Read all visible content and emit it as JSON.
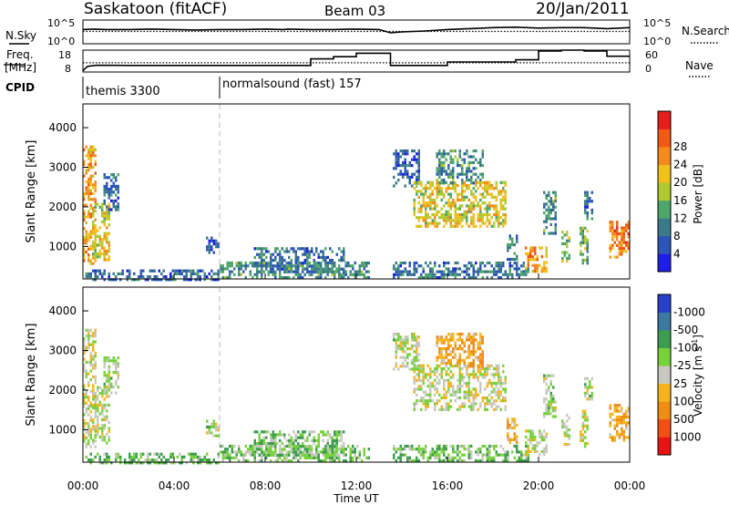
{
  "header": {
    "station": "Saskatoon (fitACF)",
    "beam": "Beam 03",
    "date": "20/Jan/2011"
  },
  "labels": {
    "nsky": "N.Sky",
    "nsearch": "N.Search",
    "freq_line1": "Freq.",
    "freq_line2": "[MHz]",
    "nave": "Nave",
    "cpid": "CPID",
    "noise_tick_top": "10^5",
    "noise_tick_bottom": "10^0",
    "noise_tick_top_right": "10^5",
    "noise_tick_bottom_right": "10^0"
  },
  "cpid_segments": [
    {
      "label": "themis 3300",
      "start_hour": 0
    },
    {
      "label": "normalsound (fast) 157",
      "start_hour": 6.0
    }
  ],
  "chart_data": [
    {
      "type": "line",
      "panel": "noise",
      "series": [
        {
          "name": "N.Sky",
          "style": "solid",
          "x": [
            0,
            0.5,
            1,
            2,
            3,
            4,
            5,
            6,
            7,
            8,
            8.8,
            9,
            10,
            11,
            12,
            13,
            13.5,
            14,
            15,
            16,
            17,
            18,
            19,
            20,
            21,
            22,
            23,
            24
          ],
          "y": [
            3.0,
            3.1,
            3.0,
            3.0,
            3.1,
            3.0,
            2.9,
            3.0,
            3.0,
            3.1,
            3.0,
            3.1,
            3.0,
            3.0,
            3.1,
            3.0,
            2.3,
            2.5,
            2.7,
            3.0,
            3.2,
            3.4,
            3.5,
            3.3,
            3.4,
            3.4,
            3.2,
            3.4
          ]
        },
        {
          "name": "N.Search",
          "style": "dotted",
          "x": [
            0,
            24
          ],
          "y": [
            2.6,
            2.6
          ]
        }
      ],
      "ylim": [
        0,
        5
      ],
      "y2lim": [
        0,
        5
      ]
    },
    {
      "type": "line",
      "panel": "frequency",
      "series": [
        {
          "name": "Freq.",
          "style": "solid",
          "x": [
            0,
            0.2,
            0.6,
            2,
            6,
            10.0,
            10.0,
            11.0,
            11.0,
            12.0,
            12.0,
            13.5,
            13.5,
            16.0,
            16.0,
            19.0,
            19.0,
            20.0,
            20.0,
            21.0,
            21.0,
            22.0,
            22.0,
            23.0,
            23.0,
            24
          ],
          "y": [
            8.6,
            10.6,
            11.1,
            11.0,
            11.0,
            11.0,
            14.0,
            14.0,
            15.0,
            15.0,
            16.6,
            16.6,
            11.0,
            11.0,
            12.6,
            12.6,
            13.6,
            13.6,
            17.6,
            17.6,
            18.0,
            18.0,
            17.6,
            17.6,
            15.2,
            15.2
          ]
        },
        {
          "name": "Nave",
          "style": "dotted",
          "x": [
            0,
            24
          ],
          "y": [
            12.2,
            12.2
          ]
        }
      ],
      "ylim": [
        8,
        18
      ],
      "yticks": [
        8,
        18
      ],
      "y2lim": [
        0,
        60
      ],
      "y2ticks": [
        0,
        60
      ]
    },
    {
      "type": "heatmap",
      "panel": "power",
      "xlabel": "",
      "ylabel": "Slant Range [km]",
      "xlim": [
        0,
        24
      ],
      "ylim": [
        180,
        4600
      ],
      "yticks": [
        1000,
        2000,
        3000,
        4000
      ],
      "colorbar": {
        "label": "Power [dB]",
        "range": [
          0,
          32
        ],
        "ticks": [
          "4",
          "8",
          "12",
          "16",
          "20",
          "24",
          "28"
        ],
        "colors": [
          "#1e1ee8",
          "#2d55b8",
          "#3c7a8a",
          "#4ea66a",
          "#b0c832",
          "#f0c01e",
          "#f58a1e",
          "#f05a14",
          "#e61e1e"
        ]
      },
      "regions": [
        {
          "t0": 0.0,
          "t1": 0.55,
          "r0": 600,
          "r1": 3550,
          "v": 22
        },
        {
          "t0": 0.4,
          "t1": 1.15,
          "r0": 700,
          "r1": 2100,
          "v": 18
        },
        {
          "t0": 0.9,
          "t1": 1.6,
          "r0": 1900,
          "r1": 2850,
          "v": 8
        },
        {
          "t0": 0.1,
          "t1": 6.0,
          "r0": 180,
          "r1": 420,
          "v": 7
        },
        {
          "t0": 6.0,
          "t1": 12.6,
          "r0": 180,
          "r1": 620,
          "v": 10
        },
        {
          "t0": 7.5,
          "t1": 11.5,
          "r0": 380,
          "r1": 980,
          "v": 8
        },
        {
          "t0": 5.4,
          "t1": 6.0,
          "r0": 850,
          "r1": 1250,
          "v": 6
        },
        {
          "t0": 13.6,
          "t1": 14.8,
          "r0": 2500,
          "r1": 3450,
          "v": 6
        },
        {
          "t0": 14.5,
          "t1": 18.6,
          "r0": 1500,
          "r1": 2650,
          "v": 18
        },
        {
          "t0": 15.5,
          "t1": 17.6,
          "r0": 2600,
          "r1": 3450,
          "v": 10
        },
        {
          "t0": 13.6,
          "t1": 19.6,
          "r0": 180,
          "r1": 620,
          "v": 8
        },
        {
          "t0": 18.6,
          "t1": 19.1,
          "r0": 650,
          "r1": 1300,
          "v": 9
        },
        {
          "t0": 19.4,
          "t1": 20.4,
          "r0": 400,
          "r1": 1000,
          "v": 22
        },
        {
          "t0": 20.2,
          "t1": 20.8,
          "r0": 1300,
          "r1": 2400,
          "v": 10
        },
        {
          "t0": 21.0,
          "t1": 21.4,
          "r0": 600,
          "r1": 1400,
          "v": 14
        },
        {
          "t0": 21.8,
          "t1": 22.2,
          "r0": 600,
          "r1": 1500,
          "v": 14
        },
        {
          "t0": 22.0,
          "t1": 22.4,
          "r0": 1700,
          "r1": 2400,
          "v": 8
        },
        {
          "t0": 23.1,
          "t1": 24.0,
          "r0": 700,
          "r1": 1650,
          "v": 24
        }
      ]
    },
    {
      "type": "heatmap",
      "panel": "velocity",
      "xlabel": "Time UT",
      "ylabel": "Slant Range [km]",
      "xlim": [
        0,
        24
      ],
      "ylim": [
        180,
        4600
      ],
      "xticks": [
        "00:00",
        "04:00",
        "08:00",
        "12:00",
        "16:00",
        "20:00",
        "00:00"
      ],
      "yticks": [
        1000,
        2000,
        3000,
        4000
      ],
      "colorbar": {
        "label": "Velocity [m s-1]",
        "range": [
          0,
          8
        ],
        "ticks": [
          "1000",
          "500",
          "100",
          "25",
          "-25",
          "-100",
          "-500",
          "-1000"
        ],
        "colors": [
          "#2840c8",
          "#3c78a0",
          "#3c9c50",
          "#78d23c",
          "#c8c8c0",
          "#f5b41e",
          "#f08c14",
          "#f05014",
          "#e61414"
        ]
      },
      "regions": [
        {
          "t0": 0.0,
          "t1": 0.55,
          "r0": 600,
          "r1": 3550,
          "v": 4.6
        },
        {
          "t0": 0.4,
          "t1": 1.15,
          "r0": 700,
          "r1": 2100,
          "v": 4.3
        },
        {
          "t0": 0.9,
          "t1": 1.6,
          "r0": 1900,
          "r1": 2850,
          "v": 4.0
        },
        {
          "t0": 0.1,
          "t1": 6.0,
          "r0": 180,
          "r1": 420,
          "v": 3.2
        },
        {
          "t0": 6.0,
          "t1": 12.6,
          "r0": 180,
          "r1": 620,
          "v": 3.4
        },
        {
          "t0": 7.5,
          "t1": 11.5,
          "r0": 380,
          "r1": 980,
          "v": 3.6
        },
        {
          "t0": 5.4,
          "t1": 6.0,
          "r0": 850,
          "r1": 1250,
          "v": 4.0
        },
        {
          "t0": 13.6,
          "t1": 14.8,
          "r0": 2500,
          "r1": 3450,
          "v": 4.1
        },
        {
          "t0": 14.5,
          "t1": 18.6,
          "r0": 1500,
          "r1": 2650,
          "v": 4.4
        },
        {
          "t0": 15.5,
          "t1": 17.6,
          "r0": 2600,
          "r1": 3450,
          "v": 5.8
        },
        {
          "t0": 13.6,
          "t1": 19.6,
          "r0": 180,
          "r1": 620,
          "v": 3.3
        },
        {
          "t0": 18.6,
          "t1": 19.1,
          "r0": 650,
          "r1": 1300,
          "v": 5.6
        },
        {
          "t0": 19.4,
          "t1": 20.4,
          "r0": 400,
          "r1": 1000,
          "v": 4.2
        },
        {
          "t0": 20.2,
          "t1": 20.8,
          "r0": 1300,
          "r1": 2400,
          "v": 4.0
        },
        {
          "t0": 21.0,
          "t1": 21.4,
          "r0": 600,
          "r1": 1400,
          "v": 4.2
        },
        {
          "t0": 21.8,
          "t1": 22.2,
          "r0": 600,
          "r1": 1500,
          "v": 4.2
        },
        {
          "t0": 22.0,
          "t1": 22.4,
          "r0": 1700,
          "r1": 2400,
          "v": 4.0
        },
        {
          "t0": 23.1,
          "t1": 24.0,
          "r0": 700,
          "r1": 1650,
          "v": 5.8
        }
      ]
    }
  ]
}
